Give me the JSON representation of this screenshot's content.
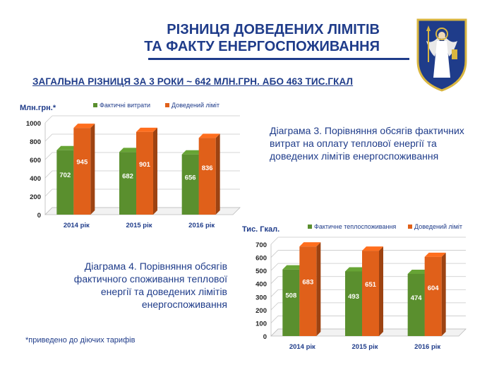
{
  "header": {
    "title_line1": "РІЗНИЦЯ ДОВЕДЕНИХ ЛІМІТІВ",
    "title_line2": "ТА ФАКТУ ЕНЕРГОСПОЖИВАННЯ",
    "subtitle": "ЗАГАЛЬНА РІЗНИЦЯ ЗА 3 РОКИ ~ 642 МЛН.ГРН. АБО 463 ТИС.ГКАЛ"
  },
  "captions": {
    "chart1": "Діаграма 3. Порівняння обсягів фактичних витрат на оплату теплової енергії та доведених лімітів енергоспоживання",
    "chart2": "Діаграма 4. Порівняння обсягів фактичного споживання теплової енергії та доведених лімітів енергоспоживання"
  },
  "footnote": "*приведено до діючих тарифів",
  "colors": {
    "green": "#5a8f2e",
    "orange": "#e0601a",
    "title": "#1f3c8a"
  },
  "chart_data": [
    {
      "type": "bar",
      "ylabel": "Млн.грн.*",
      "categories": [
        "2014 рік",
        "2015 рік",
        "2016 рік"
      ],
      "series": [
        {
          "name": "Фактичні витрати",
          "values": [
            702,
            682,
            656
          ]
        },
        {
          "name": "Доведений ліміт",
          "values": [
            945,
            901,
            836
          ]
        }
      ],
      "ylim": [
        0,
        1000
      ],
      "yticks": [
        0,
        200,
        400,
        600,
        800,
        1000
      ],
      "grid": true,
      "legend": "top"
    },
    {
      "type": "bar",
      "ylabel": "Тис. Гкал.",
      "categories": [
        "2014 рік",
        "2015 рік",
        "2016 рік"
      ],
      "series": [
        {
          "name": "Фактичне теплоспоживання",
          "values": [
            508,
            493,
            474
          ]
        },
        {
          "name": "Доведений ліміт",
          "values": [
            683,
            651,
            604
          ]
        }
      ],
      "ylim": [
        0,
        700
      ],
      "yticks": [
        0,
        100,
        200,
        300,
        400,
        500,
        600,
        700
      ],
      "grid": true,
      "legend": "top"
    }
  ]
}
